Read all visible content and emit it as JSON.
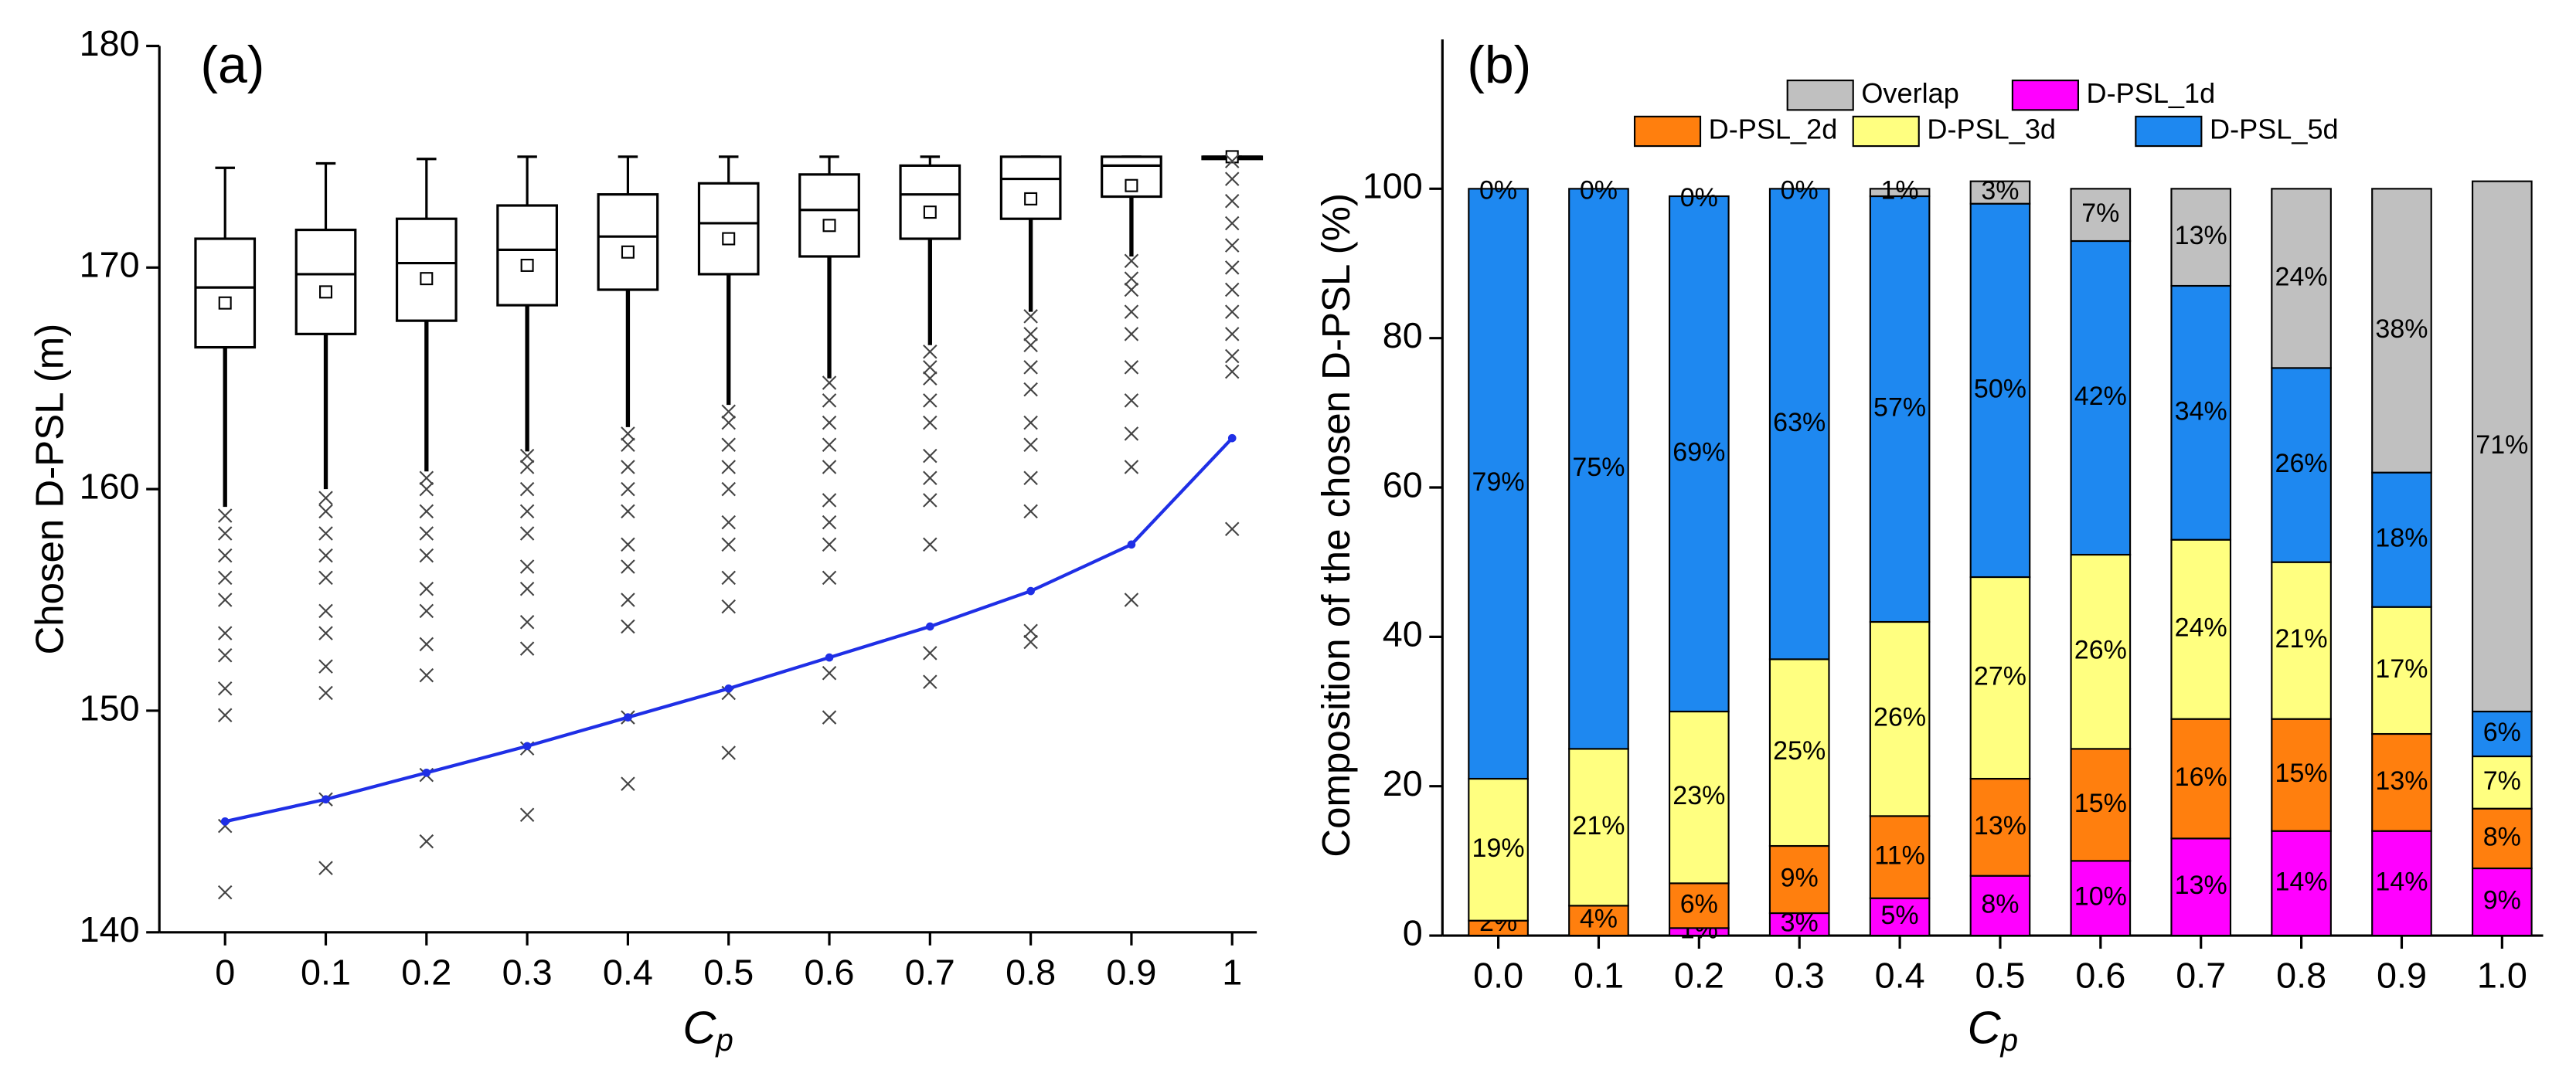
{
  "chart_data": [
    {
      "type": "box",
      "title": "(a)",
      "ylabel": "Chosen D-PSL  (m)",
      "xlabel": {
        "main": "C",
        "sub": "p"
      },
      "categories": [
        "0",
        "0.1",
        "0.2",
        "0.3",
        "0.4",
        "0.5",
        "0.6",
        "0.7",
        "0.8",
        "0.9",
        "1"
      ],
      "ylim": [
        140,
        180
      ],
      "yticks": [
        140,
        150,
        160,
        170,
        180
      ],
      "color": "#000000",
      "boxes": [
        {
          "q1": 166.4,
          "median": 169.1,
          "q3": 171.3,
          "mean": 168.4,
          "whislo": 159.2,
          "whishi": 174.5,
          "outliers": [
            158.8,
            158,
            157,
            156,
            155,
            153.5,
            152.5,
            151,
            149.8,
            144.8,
            141.8
          ]
        },
        {
          "q1": 167.0,
          "median": 169.7,
          "q3": 171.7,
          "mean": 168.9,
          "whislo": 160.0,
          "whishi": 174.7,
          "outliers": [
            159.6,
            159,
            158,
            157,
            156,
            154.5,
            153.5,
            152,
            150.8,
            146,
            142.9
          ]
        },
        {
          "q1": 167.6,
          "median": 170.2,
          "q3": 172.2,
          "mean": 169.5,
          "whislo": 160.8,
          "whishi": 174.9,
          "outliers": [
            160.5,
            160,
            159,
            158,
            157,
            155.5,
            154.5,
            153,
            151.6,
            147.1,
            144.1
          ]
        },
        {
          "q1": 168.3,
          "median": 170.8,
          "q3": 172.8,
          "mean": 170.1,
          "whislo": 161.7,
          "whishi": 175.0,
          "outliers": [
            161.5,
            161,
            160,
            159,
            158,
            156.5,
            155.5,
            154,
            152.8,
            148.3,
            145.3
          ]
        },
        {
          "q1": 169.0,
          "median": 171.4,
          "q3": 173.3,
          "mean": 170.7,
          "whislo": 162.8,
          "whishi": 175.0,
          "outliers": [
            162.5,
            162,
            161,
            160,
            159,
            157.5,
            156.5,
            155,
            153.8,
            149.7,
            146.7
          ]
        },
        {
          "q1": 169.7,
          "median": 172.0,
          "q3": 173.8,
          "mean": 171.3,
          "whislo": 163.8,
          "whishi": 175.0,
          "outliers": [
            163.5,
            163,
            162,
            161,
            160,
            158.5,
            157.5,
            156,
            154.7,
            150.8,
            148.1
          ]
        },
        {
          "q1": 170.5,
          "median": 172.6,
          "q3": 174.2,
          "mean": 171.9,
          "whislo": 165.0,
          "whishi": 175.0,
          "outliers": [
            164.8,
            164,
            163,
            162,
            161,
            159.5,
            158.5,
            157.5,
            156,
            151.7,
            149.7
          ]
        },
        {
          "q1": 171.3,
          "median": 173.3,
          "q3": 174.6,
          "mean": 172.5,
          "whislo": 166.5,
          "whishi": 175.0,
          "outliers": [
            166.2,
            165.5,
            165,
            164,
            163,
            161.5,
            160.5,
            159.5,
            157.5,
            152.6,
            151.3
          ]
        },
        {
          "q1": 172.2,
          "median": 174.0,
          "q3": 175.0,
          "mean": 173.1,
          "whislo": 168.0,
          "whishi": 175.0,
          "outliers": [
            167.8,
            167,
            166.5,
            165.5,
            164.5,
            163,
            162,
            160.5,
            159,
            153.6,
            153.1
          ]
        },
        {
          "q1": 173.2,
          "median": 174.6,
          "q3": 175.0,
          "mean": 173.7,
          "whislo": 170.5,
          "whishi": 175.0,
          "outliers": [
            170.3,
            169.5,
            169,
            168,
            167,
            165.5,
            164,
            162.5,
            161,
            155
          ]
        },
        {
          "q1": 174.9,
          "median": 175.0,
          "q3": 175.0,
          "mean": 175.0,
          "whislo": 174.9,
          "whishi": 175.0,
          "outliers": [
            174.8,
            174,
            173,
            172,
            171,
            170,
            169,
            168,
            167,
            166,
            165.3,
            158.2
          ]
        }
      ],
      "line": {
        "color": "#1f2fe6",
        "values": [
          145.0,
          146.0,
          147.2,
          148.4,
          149.7,
          151.0,
          152.4,
          153.8,
          155.4,
          157.5,
          162.3
        ]
      }
    },
    {
      "type": "stacked_bar",
      "title": "(b)",
      "ylabel": "Composition of the chosen D-PSL  (%)",
      "xlabel": {
        "main": "C",
        "sub": "p"
      },
      "categories": [
        "0.0",
        "0.1",
        "0.2",
        "0.3",
        "0.4",
        "0.5",
        "0.6",
        "0.7",
        "0.8",
        "0.9",
        "1.0"
      ],
      "ylim": [
        0,
        120
      ],
      "yticks": [
        0,
        20,
        40,
        60,
        80,
        100
      ],
      "series": [
        {
          "name": "D-PSL_1d",
          "color": "#ff00ff",
          "label_color": "#ffffff",
          "values": [
            0,
            0,
            1,
            3,
            5,
            8,
            10,
            13,
            14,
            14,
            9
          ],
          "value_labels": [
            null,
            null,
            "1%",
            "3%",
            "5%",
            "8%",
            "10%",
            "13%",
            "14%",
            "14%",
            "9%"
          ]
        },
        {
          "name": "D-PSL_2d",
          "color": "#ff7f0e",
          "label_color": "#000000",
          "values": [
            2,
            4,
            6,
            9,
            11,
            13,
            15,
            16,
            15,
            13,
            8
          ],
          "value_labels": [
            "2%",
            "4%",
            "6%",
            "9%",
            "11%",
            "13%",
            "15%",
            "16%",
            "15%",
            "13%",
            "8%"
          ]
        },
        {
          "name": "D-PSL_3d",
          "color": "#ffff80",
          "label_color": "#000000",
          "values": [
            19,
            21,
            23,
            25,
            26,
            27,
            26,
            24,
            21,
            17,
            7
          ],
          "value_labels": [
            "19%",
            "21%",
            "23%",
            "25%",
            "26%",
            "27%",
            "26%",
            "24%",
            "21%",
            "17%",
            "7%"
          ]
        },
        {
          "name": "D-PSL_5d",
          "color": "#1e88f0",
          "label_color": "#ffffff",
          "values": [
            79,
            75,
            69,
            63,
            57,
            50,
            42,
            34,
            26,
            18,
            6
          ],
          "value_labels": [
            "79%",
            "75%",
            "69%",
            "63%",
            "57%",
            "50%",
            "42%",
            "34%",
            "26%",
            "18%",
            "6%"
          ]
        },
        {
          "name": "Overlap",
          "color": "#c0c0c0",
          "label_color": "#000000",
          "values": [
            0,
            0,
            0,
            0,
            1,
            3,
            7,
            13,
            24,
            38,
            71
          ],
          "value_labels": [
            "0%",
            "0%",
            "0%",
            "0%",
            "1%",
            "3%",
            "7%",
            "13%",
            "24%",
            "38%",
            "71%"
          ]
        }
      ]
    }
  ]
}
